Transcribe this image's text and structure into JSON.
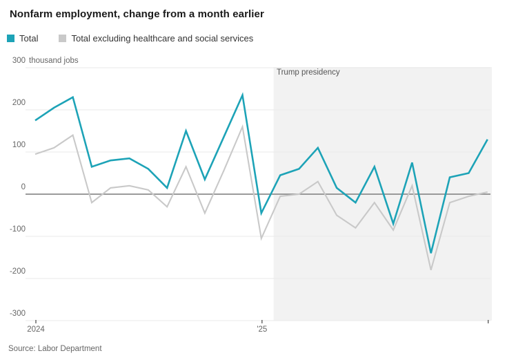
{
  "header": {
    "title": "Nonfarm employment, change from a month earlier"
  },
  "legend": [
    {
      "label": "Total",
      "color": "#1da3b7"
    },
    {
      "label": "Total excluding healthcare and social services",
      "color": "#c9c9c9"
    }
  ],
  "source": "Source: Labor Department",
  "chart_data": {
    "type": "line",
    "title": "Nonfarm employment, change from a month earlier",
    "unit_label": "thousand jobs",
    "ylim": [
      -300,
      300
    ],
    "y_tick_step": 100,
    "grid": "horizontal",
    "legend_position": "top-left",
    "x": [
      "Jan 2024",
      "Feb 2024",
      "Mar 2024",
      "Apr 2024",
      "May 2024",
      "Jun 2024",
      "Jul 2024",
      "Aug 2024",
      "Sep 2024",
      "Oct 2024",
      "Nov 2024",
      "Dec 2024",
      "Jan 2025",
      "Feb 2025",
      "Mar 2025",
      "Apr 2025",
      "May 2025",
      "Jun 2025",
      "Jul 2025",
      "Aug 2025",
      "Sep 2025",
      "Oct 2025",
      "Nov 2025",
      "Dec 2025",
      "Jan 2026"
    ],
    "series": [
      {
        "name": "Total",
        "color": "#1da3b7",
        "values": [
          175,
          205,
          230,
          65,
          80,
          85,
          60,
          15,
          150,
          35,
          135,
          235,
          -45,
          45,
          60,
          110,
          15,
          -20,
          65,
          -70,
          75,
          -140,
          40,
          50,
          130
        ]
      },
      {
        "name": "Total excluding healthcare and social services",
        "color": "#c9c9c9",
        "values": [
          95,
          110,
          140,
          -20,
          15,
          20,
          10,
          -30,
          65,
          -45,
          55,
          160,
          -105,
          -5,
          0,
          30,
          -50,
          -80,
          -20,
          -85,
          20,
          -180,
          -20,
          -5,
          5
        ]
      }
    ],
    "x_ticks": [
      {
        "label": "2024",
        "month_index": 0
      },
      {
        "label": "'25",
        "month_index": 12
      },
      {
        "label": "",
        "month_index": 24
      }
    ],
    "region": {
      "label": "Trump presidency",
      "start_month_index": 12.65,
      "color": "#f2f2f2"
    },
    "colors": {
      "zero_line": "#8c8c8c",
      "gridline": "#e9e9e9",
      "tick": "#444444"
    }
  }
}
